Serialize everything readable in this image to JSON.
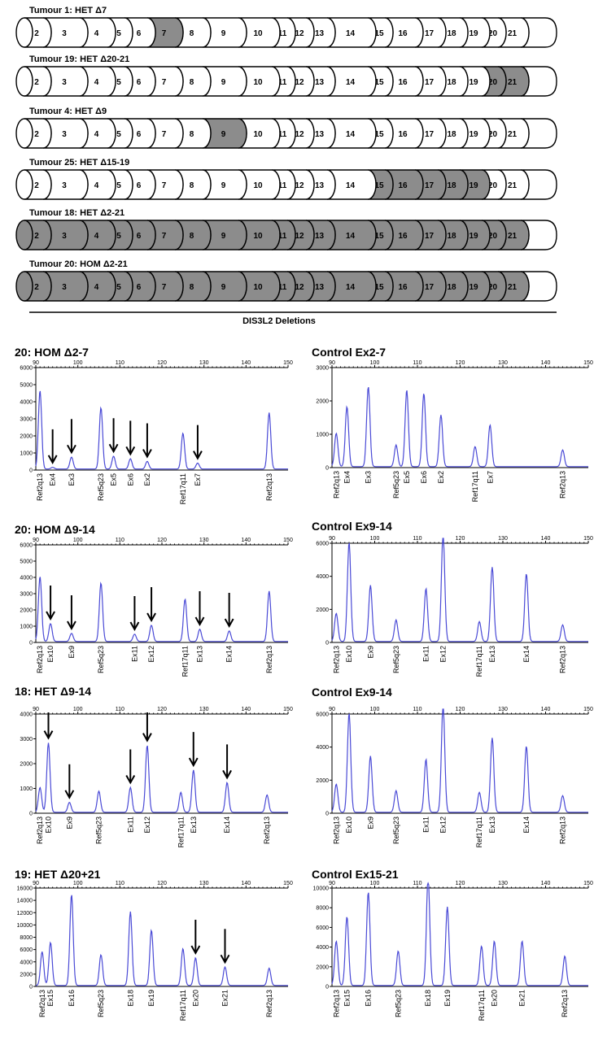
{
  "exon_labels": [
    "2",
    "3",
    "4",
    "5",
    "6",
    "7",
    "8",
    "9",
    "10",
    "11",
    "12",
    "13",
    "14",
    "15",
    "16",
    "17",
    "18",
    "19",
    "20",
    "21"
  ],
  "tumours": [
    {
      "title": "Tumour 1: HET Δ7",
      "deleted": [
        "7"
      ]
    },
    {
      "title": "Tumour 19: HET Δ20-21",
      "deleted": [
        "20",
        "21"
      ]
    },
    {
      "title": "Tumour 4: HET Δ9",
      "deleted": [
        "9"
      ]
    },
    {
      "title": "Tumour 25: HET Δ15-19",
      "deleted": [
        "15",
        "16",
        "17",
        "18",
        "19"
      ]
    },
    {
      "title": "Tumour 18: HET Δ2-21",
      "deleted": [
        "2",
        "3",
        "4",
        "5",
        "6",
        "7",
        "8",
        "9",
        "10",
        "11",
        "12",
        "13",
        "14",
        "15",
        "16",
        "17",
        "18",
        "19",
        "20",
        "21"
      ]
    },
    {
      "title": "Tumour 20: HOM Δ2-21",
      "deleted": [
        "2",
        "3",
        "4",
        "5",
        "6",
        "7",
        "8",
        "9",
        "10",
        "11",
        "12",
        "13",
        "14",
        "15",
        "16",
        "17",
        "18",
        "19",
        "20",
        "21"
      ]
    }
  ],
  "diagram_caption": "DIS3L2 Deletions",
  "colors": {
    "deleted": "#8c8c8c",
    "normal": "#ffffff",
    "trace": "#4a4ad6",
    "arrow": "#000000"
  },
  "chart_data": [
    {
      "type": "line",
      "title": "20: HOM Δ2-7",
      "xlim": [
        90,
        150
      ],
      "xticks": [
        90,
        100,
        110,
        120,
        130,
        140,
        150
      ],
      "ylim": [
        0,
        6000
      ],
      "yticks": [
        0,
        1000,
        2000,
        3000,
        4000,
        5000,
        6000
      ],
      "peaks": [
        {
          "label": "Ref2q13",
          "x": 91,
          "y": 4600
        },
        {
          "label": "Ex4",
          "x": 94,
          "y": 100
        },
        {
          "label": "Ex3",
          "x": 98.5,
          "y": 700
        },
        {
          "label": "Ref5q23",
          "x": 105.5,
          "y": 3600
        },
        {
          "label": "Ex5",
          "x": 108.5,
          "y": 750
        },
        {
          "label": "Ex6",
          "x": 112.5,
          "y": 600
        },
        {
          "label": "Ex2",
          "x": 116.5,
          "y": 450
        },
        {
          "label": "Ref17q11",
          "x": 125,
          "y": 2100
        },
        {
          "label": "Ex7",
          "x": 128.5,
          "y": 350
        },
        {
          "label": "Ref2q13",
          "x": 145.5,
          "y": 3300
        }
      ],
      "arrows": [
        "Ex4",
        "Ex3",
        "Ex5",
        "Ex6",
        "Ex2",
        "Ex7"
      ]
    },
    {
      "type": "line",
      "title": "Control Ex2-7",
      "xlim": [
        90,
        150
      ],
      "xticks": [
        90,
        100,
        110,
        120,
        130,
        140,
        150
      ],
      "ylim": [
        0,
        3000
      ],
      "yticks": [
        0,
        1000,
        2000,
        3000
      ],
      "peaks": [
        {
          "label": "Ref2q13",
          "x": 91,
          "y": 1000
        },
        {
          "label": "Ex4",
          "x": 93.5,
          "y": 1800
        },
        {
          "label": "Ex3",
          "x": 98.5,
          "y": 2400
        },
        {
          "label": "Ref5q23",
          "x": 105,
          "y": 650
        },
        {
          "label": "Ex5",
          "x": 107.5,
          "y": 2300
        },
        {
          "label": "Ex6",
          "x": 111.5,
          "y": 2200
        },
        {
          "label": "Ex2",
          "x": 115.5,
          "y": 1550
        },
        {
          "label": "Ref17q11",
          "x": 123.5,
          "y": 600
        },
        {
          "label": "Ex7",
          "x": 127,
          "y": 1250
        },
        {
          "label": "Ref2q13",
          "x": 144,
          "y": 500
        }
      ],
      "arrows": []
    },
    {
      "type": "line",
      "title": "20: HOM Δ9-14",
      "xlim": [
        90,
        150
      ],
      "xticks": [
        90,
        100,
        110,
        120,
        130,
        140,
        150
      ],
      "ylim": [
        0,
        6000
      ],
      "yticks": [
        0,
        1000,
        2000,
        3000,
        4000,
        5000,
        6000
      ],
      "peaks": [
        {
          "label": "Ref2q13",
          "x": 91,
          "y": 4000
        },
        {
          "label": "Ex10",
          "x": 93.5,
          "y": 1100
        },
        {
          "label": "Ex9",
          "x": 98.5,
          "y": 500
        },
        {
          "label": "Ref5q23",
          "x": 105.5,
          "y": 3600
        },
        {
          "label": "Ex11",
          "x": 113.5,
          "y": 450
        },
        {
          "label": "Ex12",
          "x": 117.5,
          "y": 1000
        },
        {
          "label": "Ref17q11",
          "x": 125.5,
          "y": 2600
        },
        {
          "label": "Ex13",
          "x": 129,
          "y": 750
        },
        {
          "label": "Ex14",
          "x": 136,
          "y": 650
        },
        {
          "label": "Ref2q13",
          "x": 145.5,
          "y": 3100
        }
      ],
      "arrows": [
        "Ex10",
        "Ex9",
        "Ex11",
        "Ex12",
        "Ex13",
        "Ex14"
      ]
    },
    {
      "type": "line",
      "title": "Control Ex9-14",
      "xlim": [
        90,
        150
      ],
      "xticks": [
        90,
        100,
        110,
        120,
        130,
        140,
        150
      ],
      "ylim": [
        0,
        6000
      ],
      "yticks": [
        0,
        2000,
        4000,
        6000
      ],
      "peaks": [
        {
          "label": "Ref2q13",
          "x": 91,
          "y": 1700
        },
        {
          "label": "Ex10",
          "x": 94,
          "y": 6000
        },
        {
          "label": "Ex9",
          "x": 99,
          "y": 3400
        },
        {
          "label": "Ref5q23",
          "x": 105,
          "y": 1300
        },
        {
          "label": "Ex11",
          "x": 112,
          "y": 3200
        },
        {
          "label": "Ex12",
          "x": 116,
          "y": 6600
        },
        {
          "label": "Ref17q11",
          "x": 124.5,
          "y": 1200
        },
        {
          "label": "Ex13",
          "x": 127.5,
          "y": 4500
        },
        {
          "label": "Ex14",
          "x": 135.5,
          "y": 4100
        },
        {
          "label": "Ref2q13",
          "x": 144,
          "y": 1000
        }
      ],
      "arrows": []
    },
    {
      "type": "line",
      "title": "18: HET Δ9-14",
      "xlim": [
        90,
        150
      ],
      "xticks": [
        90,
        100,
        110,
        120,
        130,
        140,
        150
      ],
      "ylim": [
        0,
        4000
      ],
      "yticks": [
        0,
        1000,
        2000,
        3000,
        4000
      ],
      "peaks": [
        {
          "label": "Ref2q13",
          "x": 91,
          "y": 1000
        },
        {
          "label": "Ex10",
          "x": 93,
          "y": 2800
        },
        {
          "label": "Ex9",
          "x": 98,
          "y": 400
        },
        {
          "label": "Ref5q23",
          "x": 105,
          "y": 850
        },
        {
          "label": "Ex11",
          "x": 112.5,
          "y": 1000
        },
        {
          "label": "Ex12",
          "x": 116.5,
          "y": 2700
        },
        {
          "label": "Ref17q11",
          "x": 124.5,
          "y": 800
        },
        {
          "label": "Ex13",
          "x": 127.5,
          "y": 1700
        },
        {
          "label": "Ex14",
          "x": 135.5,
          "y": 1200
        },
        {
          "label": "Ref2q13",
          "x": 145,
          "y": 700
        }
      ],
      "arrows": [
        "Ex10",
        "Ex9",
        "Ex11",
        "Ex12",
        "Ex13",
        "Ex14"
      ]
    },
    {
      "type": "line",
      "title": "Control Ex9-14",
      "xlim": [
        90,
        150
      ],
      "xticks": [
        90,
        100,
        110,
        120,
        130,
        140,
        150
      ],
      "ylim": [
        0,
        6000
      ],
      "yticks": [
        0,
        2000,
        4000,
        6000
      ],
      "peaks": [
        {
          "label": "Ref2q13",
          "x": 91,
          "y": 1700
        },
        {
          "label": "Ex10",
          "x": 94,
          "y": 6000
        },
        {
          "label": "Ex9",
          "x": 99,
          "y": 3400
        },
        {
          "label": "Ref5q23",
          "x": 105,
          "y": 1300
        },
        {
          "label": "Ex11",
          "x": 112,
          "y": 3200
        },
        {
          "label": "Ex12",
          "x": 116,
          "y": 6600
        },
        {
          "label": "Ref17q11",
          "x": 124.5,
          "y": 1200
        },
        {
          "label": "Ex13",
          "x": 127.5,
          "y": 4500
        },
        {
          "label": "Ex14",
          "x": 135.5,
          "y": 4000
        },
        {
          "label": "Ref2q13",
          "x": 144,
          "y": 1000
        }
      ],
      "arrows": []
    },
    {
      "type": "line",
      "title": "19: HET Δ20+21",
      "xlim": [
        90,
        150
      ],
      "xticks": [
        90,
        100,
        110,
        120,
        130,
        140,
        150
      ],
      "ylim": [
        0,
        16000
      ],
      "yticks": [
        0,
        2000,
        4000,
        6000,
        8000,
        10000,
        12000,
        14000,
        16000
      ],
      "peaks": [
        {
          "label": "Ref2q13",
          "x": 91.5,
          "y": 5500
        },
        {
          "label": "Ex15",
          "x": 93.5,
          "y": 7000
        },
        {
          "label": "Ex16",
          "x": 98.5,
          "y": 14800
        },
        {
          "label": "Ref5q23",
          "x": 105.5,
          "y": 5000
        },
        {
          "label": "Ex18",
          "x": 112.5,
          "y": 12000
        },
        {
          "label": "Ex19",
          "x": 117.5,
          "y": 9000
        },
        {
          "label": "Ref17q11",
          "x": 125,
          "y": 6000
        },
        {
          "label": "Ex20",
          "x": 128,
          "y": 4500
        },
        {
          "label": "Ex21",
          "x": 135,
          "y": 3000
        },
        {
          "label": "Ref2q13",
          "x": 145.5,
          "y": 2800
        }
      ],
      "arrows": [
        "Ex20",
        "Ex21"
      ]
    },
    {
      "type": "line",
      "title": "Control Ex15-21",
      "xlim": [
        90,
        150
      ],
      "xticks": [
        90,
        100,
        110,
        120,
        130,
        140,
        150
      ],
      "ylim": [
        0,
        10000
      ],
      "yticks": [
        0,
        2000,
        4000,
        6000,
        8000,
        10000
      ],
      "peaks": [
        {
          "label": "Ref2q13",
          "x": 91,
          "y": 4500
        },
        {
          "label": "Ex15",
          "x": 93.5,
          "y": 7000
        },
        {
          "label": "Ex16",
          "x": 98.5,
          "y": 9500
        },
        {
          "label": "Ref5q23",
          "x": 105.5,
          "y": 3500
        },
        {
          "label": "Ex18",
          "x": 112.5,
          "y": 11000
        },
        {
          "label": "Ex19",
          "x": 117,
          "y": 8000
        },
        {
          "label": "Ref17q11",
          "x": 125,
          "y": 4000
        },
        {
          "label": "Ex20",
          "x": 128,
          "y": 4500
        },
        {
          "label": "Ex21",
          "x": 134.5,
          "y": 4500
        },
        {
          "label": "Ref2q13",
          "x": 144.5,
          "y": 3000
        }
      ],
      "arrows": []
    }
  ]
}
